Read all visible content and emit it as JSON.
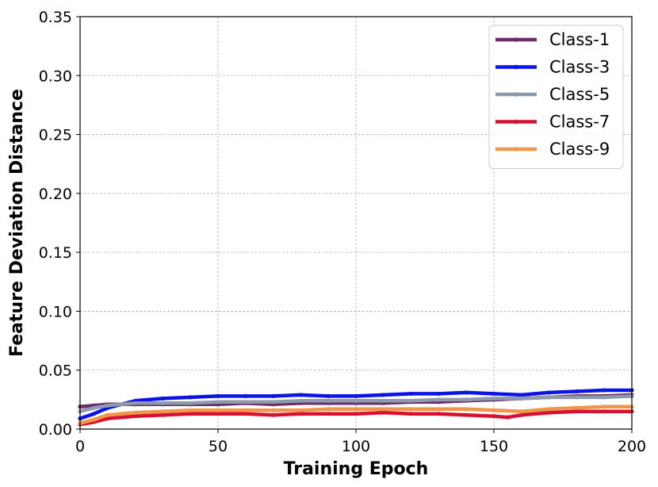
{
  "chart_data": {
    "type": "line",
    "xlabel": "Training Epoch",
    "ylabel": "Feature Deviation Distance",
    "xlim": [
      0,
      200
    ],
    "ylim": [
      0,
      0.35
    ],
    "xticks": [
      0,
      50,
      100,
      150,
      200
    ],
    "xtick_labels": [
      "0",
      "50",
      "100",
      "150",
      "200"
    ],
    "yticks": [
      0,
      0.05,
      0.1,
      0.15,
      0.2,
      0.25,
      0.3,
      0.35
    ],
    "ytick_labels": [
      "0.00",
      "0.05",
      "0.10",
      "0.15",
      "0.20",
      "0.25",
      "0.30",
      "0.35"
    ],
    "grid": true,
    "legend_position": "top-right",
    "series": [
      {
        "name": "Class-1",
        "color": "#6b2c6b",
        "x": [
          0,
          5,
          10,
          20,
          30,
          40,
          50,
          60,
          70,
          80,
          90,
          100,
          110,
          120,
          130,
          140,
          150,
          160,
          170,
          180,
          190,
          200
        ],
        "values": [
          0.019,
          0.02,
          0.021,
          0.021,
          0.021,
          0.021,
          0.021,
          0.022,
          0.021,
          0.022,
          0.022,
          0.022,
          0.022,
          0.023,
          0.023,
          0.024,
          0.025,
          0.026,
          0.027,
          0.028,
          0.028,
          0.029
        ]
      },
      {
        "name": "Class-3",
        "color": "#0a14e6",
        "x": [
          0,
          5,
          10,
          20,
          30,
          40,
          50,
          60,
          70,
          80,
          90,
          100,
          110,
          120,
          130,
          140,
          150,
          160,
          170,
          180,
          190,
          200
        ],
        "values": [
          0.009,
          0.013,
          0.018,
          0.024,
          0.026,
          0.027,
          0.028,
          0.028,
          0.028,
          0.029,
          0.028,
          0.028,
          0.029,
          0.03,
          0.03,
          0.031,
          0.03,
          0.029,
          0.031,
          0.032,
          0.033,
          0.033
        ]
      },
      {
        "name": "Class-5",
        "color": "#8c9aab",
        "x": [
          0,
          5,
          10,
          20,
          30,
          40,
          50,
          60,
          70,
          80,
          90,
          100,
          110,
          120,
          130,
          140,
          150,
          160,
          170,
          180,
          190,
          200
        ],
        "values": [
          0.015,
          0.018,
          0.02,
          0.022,
          0.022,
          0.022,
          0.023,
          0.023,
          0.023,
          0.024,
          0.024,
          0.024,
          0.024,
          0.024,
          0.025,
          0.025,
          0.026,
          0.026,
          0.027,
          0.027,
          0.027,
          0.028
        ]
      },
      {
        "name": "Class-7",
        "color": "#d61031",
        "x": [
          0,
          5,
          10,
          20,
          30,
          40,
          50,
          60,
          70,
          80,
          90,
          100,
          110,
          120,
          130,
          140,
          150,
          155,
          160,
          170,
          180,
          190,
          200
        ],
        "values": [
          0.004,
          0.006,
          0.009,
          0.011,
          0.012,
          0.013,
          0.013,
          0.013,
          0.012,
          0.013,
          0.013,
          0.013,
          0.014,
          0.013,
          0.013,
          0.012,
          0.011,
          0.01,
          0.012,
          0.014,
          0.015,
          0.015,
          0.015
        ]
      },
      {
        "name": "Class-9",
        "color": "#f0954a",
        "x": [
          0,
          5,
          10,
          20,
          30,
          40,
          50,
          60,
          70,
          80,
          90,
          100,
          110,
          120,
          130,
          140,
          150,
          160,
          170,
          180,
          190,
          200
        ],
        "values": [
          0.005,
          0.008,
          0.012,
          0.014,
          0.015,
          0.016,
          0.016,
          0.016,
          0.016,
          0.016,
          0.017,
          0.017,
          0.017,
          0.017,
          0.017,
          0.017,
          0.016,
          0.015,
          0.017,
          0.018,
          0.019,
          0.019
        ]
      }
    ]
  }
}
